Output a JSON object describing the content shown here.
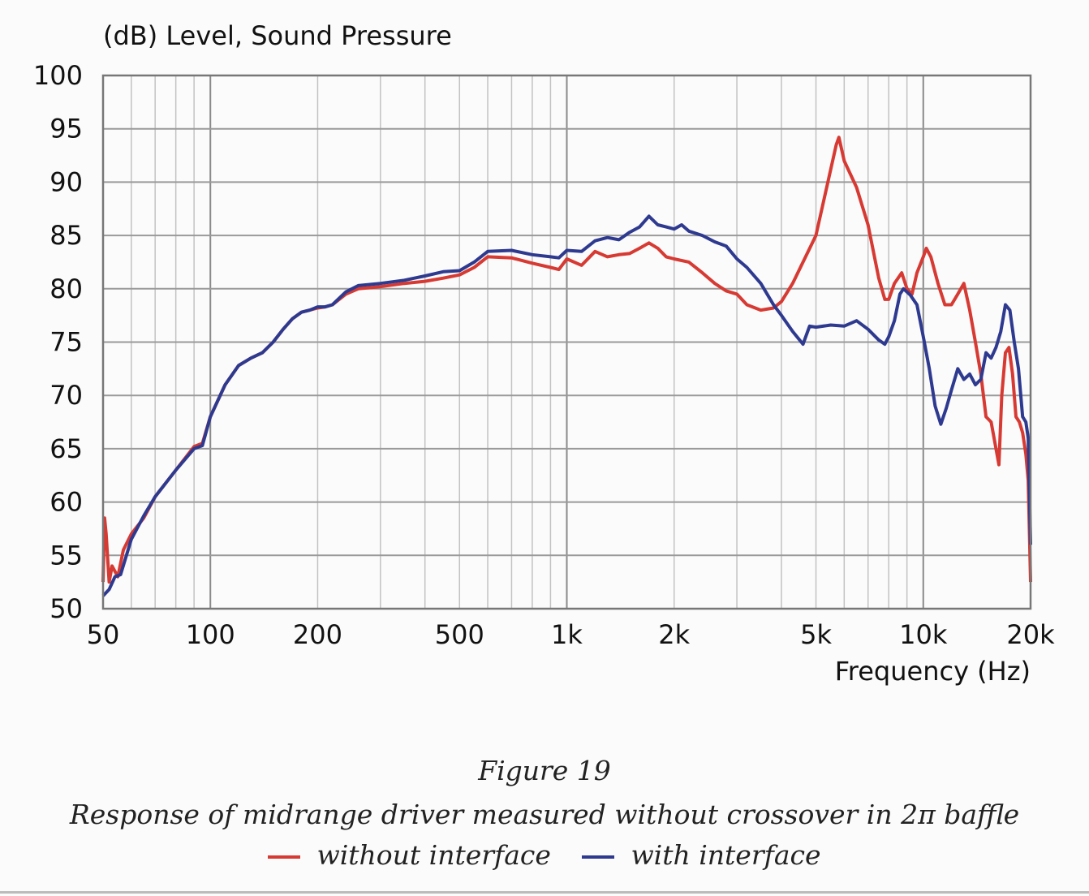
{
  "chart_data": {
    "type": "line",
    "ylabel": "(dB)  Level, Sound Pressure",
    "xlabel": "Frequency  (Hz)",
    "x_scale": "log",
    "xlim": [
      50,
      20000
    ],
    "ylim": [
      50,
      100
    ],
    "grid": true,
    "x_ticks": [
      {
        "value": 50,
        "label": "50"
      },
      {
        "value": 100,
        "label": "100"
      },
      {
        "value": 200,
        "label": "200"
      },
      {
        "value": 500,
        "label": "500"
      },
      {
        "value": 1000,
        "label": "1k"
      },
      {
        "value": 2000,
        "label": "2k"
      },
      {
        "value": 5000,
        "label": "5k"
      },
      {
        "value": 10000,
        "label": "10k"
      },
      {
        "value": 20000,
        "label": "20k"
      }
    ],
    "y_ticks": [
      50,
      55,
      60,
      65,
      70,
      75,
      80,
      85,
      90,
      95,
      100
    ],
    "series": [
      {
        "name": "without interface",
        "color": "#d63a33",
        "points": [
          [
            50,
            52.5
          ],
          [
            50.5,
            58.5
          ],
          [
            51,
            57
          ],
          [
            52,
            52.5
          ],
          [
            53,
            54
          ],
          [
            55,
            53
          ],
          [
            57,
            55.5
          ],
          [
            60,
            57
          ],
          [
            65,
            58.5
          ],
          [
            70,
            60.5
          ],
          [
            80,
            63
          ],
          [
            90,
            65.2
          ],
          [
            95,
            65.5
          ],
          [
            100,
            68
          ],
          [
            110,
            71
          ],
          [
            120,
            72.8
          ],
          [
            130,
            73.5
          ],
          [
            140,
            74
          ],
          [
            150,
            75
          ],
          [
            160,
            76.2
          ],
          [
            170,
            77.2
          ],
          [
            180,
            77.8
          ],
          [
            190,
            78
          ],
          [
            200,
            78.2
          ],
          [
            210,
            78.3
          ],
          [
            220,
            78.5
          ],
          [
            240,
            79.5
          ],
          [
            260,
            80
          ],
          [
            300,
            80.2
          ],
          [
            350,
            80.5
          ],
          [
            400,
            80.7
          ],
          [
            450,
            81
          ],
          [
            500,
            81.3
          ],
          [
            550,
            82
          ],
          [
            600,
            83
          ],
          [
            700,
            82.9
          ],
          [
            800,
            82.4
          ],
          [
            900,
            82
          ],
          [
            950,
            81.8
          ],
          [
            1000,
            82.8
          ],
          [
            1100,
            82.2
          ],
          [
            1200,
            83.5
          ],
          [
            1300,
            83
          ],
          [
            1400,
            83.2
          ],
          [
            1500,
            83.3
          ],
          [
            1600,
            83.8
          ],
          [
            1700,
            84.3
          ],
          [
            1800,
            83.8
          ],
          [
            1900,
            83
          ],
          [
            2000,
            82.8
          ],
          [
            2200,
            82.5
          ],
          [
            2400,
            81.5
          ],
          [
            2600,
            80.5
          ],
          [
            2800,
            79.8
          ],
          [
            3000,
            79.5
          ],
          [
            3200,
            78.5
          ],
          [
            3500,
            78
          ],
          [
            3800,
            78.2
          ],
          [
            4000,
            78.8
          ],
          [
            4300,
            80.5
          ],
          [
            4600,
            82.5
          ],
          [
            5000,
            85
          ],
          [
            5400,
            90
          ],
          [
            5700,
            93.5
          ],
          [
            5800,
            94.2
          ],
          [
            6000,
            92
          ],
          [
            6500,
            89.5
          ],
          [
            7000,
            86
          ],
          [
            7500,
            81
          ],
          [
            7800,
            79
          ],
          [
            8000,
            79
          ],
          [
            8300,
            80.5
          ],
          [
            8700,
            81.5
          ],
          [
            9000,
            80
          ],
          [
            9300,
            79.5
          ],
          [
            9600,
            81.5
          ],
          [
            10000,
            83
          ],
          [
            10200,
            83.8
          ],
          [
            10500,
            83
          ],
          [
            11000,
            80.5
          ],
          [
            11500,
            78.5
          ],
          [
            12000,
            78.5
          ],
          [
            12500,
            79.5
          ],
          [
            13000,
            80.5
          ],
          [
            13500,
            78
          ],
          [
            14000,
            75
          ],
          [
            14500,
            72
          ],
          [
            15000,
            68
          ],
          [
            15500,
            67.5
          ],
          [
            16000,
            65
          ],
          [
            16300,
            63.5
          ],
          [
            16600,
            70
          ],
          [
            17000,
            74
          ],
          [
            17400,
            74.5
          ],
          [
            17800,
            72
          ],
          [
            18200,
            68
          ],
          [
            18600,
            67.5
          ],
          [
            19000,
            66.5
          ],
          [
            19400,
            64.5
          ],
          [
            19700,
            62
          ],
          [
            20000,
            52.5
          ]
        ]
      },
      {
        "name": "with interface",
        "color": "#2e3a8f",
        "points": [
          [
            50,
            51.2
          ],
          [
            52,
            51.8
          ],
          [
            54,
            53
          ],
          [
            56,
            53.2
          ],
          [
            60,
            56.5
          ],
          [
            65,
            58.7
          ],
          [
            70,
            60.5
          ],
          [
            80,
            63
          ],
          [
            90,
            65
          ],
          [
            95,
            65.3
          ],
          [
            100,
            68
          ],
          [
            110,
            71
          ],
          [
            120,
            72.8
          ],
          [
            130,
            73.5
          ],
          [
            140,
            74
          ],
          [
            150,
            75
          ],
          [
            160,
            76.2
          ],
          [
            170,
            77.2
          ],
          [
            180,
            77.8
          ],
          [
            190,
            78
          ],
          [
            200,
            78.3
          ],
          [
            210,
            78.3
          ],
          [
            220,
            78.5
          ],
          [
            240,
            79.7
          ],
          [
            260,
            80.3
          ],
          [
            300,
            80.5
          ],
          [
            350,
            80.8
          ],
          [
            400,
            81.2
          ],
          [
            450,
            81.6
          ],
          [
            500,
            81.7
          ],
          [
            550,
            82.5
          ],
          [
            600,
            83.5
          ],
          [
            700,
            83.6
          ],
          [
            800,
            83.2
          ],
          [
            900,
            83
          ],
          [
            950,
            82.9
          ],
          [
            1000,
            83.6
          ],
          [
            1100,
            83.5
          ],
          [
            1200,
            84.5
          ],
          [
            1300,
            84.8
          ],
          [
            1400,
            84.6
          ],
          [
            1500,
            85.3
          ],
          [
            1600,
            85.8
          ],
          [
            1700,
            86.8
          ],
          [
            1800,
            86
          ],
          [
            1900,
            85.8
          ],
          [
            2000,
            85.6
          ],
          [
            2100,
            86
          ],
          [
            2200,
            85.4
          ],
          [
            2400,
            85
          ],
          [
            2600,
            84.4
          ],
          [
            2800,
            84
          ],
          [
            3000,
            82.8
          ],
          [
            3200,
            82
          ],
          [
            3500,
            80.5
          ],
          [
            3800,
            78.5
          ],
          [
            4000,
            77.5
          ],
          [
            4300,
            76
          ],
          [
            4600,
            74.8
          ],
          [
            4800,
            76.5
          ],
          [
            5000,
            76.4
          ],
          [
            5500,
            76.6
          ],
          [
            6000,
            76.5
          ],
          [
            6500,
            77
          ],
          [
            7000,
            76.2
          ],
          [
            7500,
            75.2
          ],
          [
            7800,
            74.8
          ],
          [
            8000,
            75.5
          ],
          [
            8300,
            77
          ],
          [
            8600,
            79.5
          ],
          [
            8800,
            80
          ],
          [
            9200,
            79.4
          ],
          [
            9600,
            78.5
          ],
          [
            10000,
            75.5
          ],
          [
            10400,
            72.5
          ],
          [
            10800,
            69
          ],
          [
            11200,
            67.3
          ],
          [
            11600,
            68.8
          ],
          [
            12000,
            70.5
          ],
          [
            12500,
            72.5
          ],
          [
            13000,
            71.5
          ],
          [
            13500,
            72
          ],
          [
            14000,
            71
          ],
          [
            14500,
            71.5
          ],
          [
            15000,
            74
          ],
          [
            15500,
            73.5
          ],
          [
            16000,
            74.5
          ],
          [
            16500,
            76
          ],
          [
            17000,
            78.5
          ],
          [
            17500,
            78
          ],
          [
            18000,
            75
          ],
          [
            18500,
            72.5
          ],
          [
            19000,
            68
          ],
          [
            19400,
            67.5
          ],
          [
            19700,
            66
          ],
          [
            20000,
            56
          ]
        ]
      }
    ]
  },
  "caption": {
    "figure_number": "Figure 19",
    "description": "Response of midrange driver measured without crossover in 2π baffle"
  },
  "legend": {
    "items": [
      {
        "label": "without interface",
        "color": "#d63a33"
      },
      {
        "label": "with interface",
        "color": "#2e3a8f"
      }
    ]
  }
}
